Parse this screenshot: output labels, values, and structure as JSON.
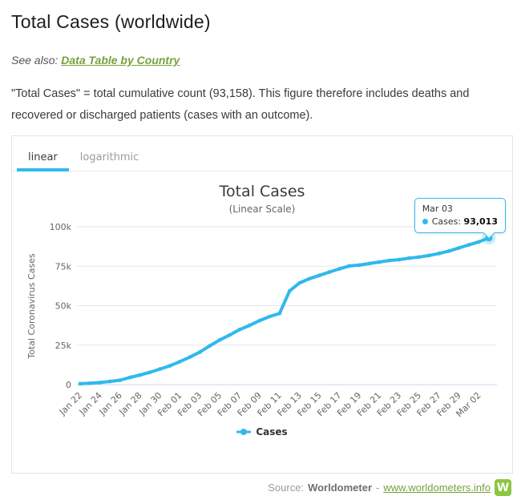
{
  "header": {
    "title": "Total Cases (worldwide)"
  },
  "see_also": {
    "prefix": "See also:",
    "link_label": "Data Table by Country"
  },
  "description": {
    "text": "\"Total Cases\" = total cumulative count (93,158). This figure therefore includes deaths and recovered or discharged patients (cases with an outcome)."
  },
  "tabs": [
    {
      "label": "linear",
      "active": true
    },
    {
      "label": "logarithmic",
      "active": false
    }
  ],
  "tooltip": {
    "date": "Mar 03",
    "series_label": "Cases:",
    "value": "93,013"
  },
  "chart_data": {
    "type": "line",
    "title": "Total Cases",
    "subtitle": "(Linear Scale)",
    "ylabel": "Total Coronavirus Cases",
    "xlabel": "",
    "x": [
      "Jan 22",
      "Jan 23",
      "Jan 24",
      "Jan 25",
      "Jan 26",
      "Jan 27",
      "Jan 28",
      "Jan 29",
      "Jan 30",
      "Jan 31",
      "Feb 01",
      "Feb 02",
      "Feb 03",
      "Feb 04",
      "Feb 05",
      "Feb 06",
      "Feb 07",
      "Feb 08",
      "Feb 09",
      "Feb 10",
      "Feb 11",
      "Feb 12",
      "Feb 13",
      "Feb 14",
      "Feb 15",
      "Feb 16",
      "Feb 17",
      "Feb 18",
      "Feb 19",
      "Feb 20",
      "Feb 21",
      "Feb 22",
      "Feb 23",
      "Feb 24",
      "Feb 25",
      "Feb 26",
      "Feb 27",
      "Feb 28",
      "Feb 29",
      "Mar 01",
      "Mar 02",
      "Mar 03"
    ],
    "x_label_every": 2,
    "series": [
      {
        "name": "Cases",
        "color": "#2FB9EC",
        "values": [
          580,
          845,
          1317,
          2015,
          2800,
          4581,
          6058,
          7813,
          9823,
          11950,
          14553,
          17391,
          20630,
          24545,
          28266,
          31439,
          34876,
          37552,
          40553,
          43099,
          45134,
          59287,
          64438,
          67100,
          69197,
          71329,
          73332,
          75184,
          75700,
          76677,
          77673,
          78651,
          79205,
          80087,
          80828,
          81820,
          83112,
          84615,
          86604,
          88585,
          90443,
          93013
        ]
      }
    ],
    "ylim": [
      0,
      100000
    ],
    "yticks": [
      {
        "v": 0,
        "label": "0"
      },
      {
        "v": 25000,
        "label": "25k"
      },
      {
        "v": 50000,
        "label": "50k"
      },
      {
        "v": 75000,
        "label": "75k"
      },
      {
        "v": 100000,
        "label": "100k"
      }
    ],
    "grid": true,
    "legend_position": "bottom",
    "highlight_last_point": true
  },
  "footer": {
    "source_prefix": "Source:",
    "source_name": "Worldometer",
    "separator": "-",
    "link_label": "www.worldometers.info",
    "logo_letter": "W"
  },
  "colors": {
    "accent": "#2FB9EC",
    "link_green": "#77A13C",
    "logo_green": "#8DC63F",
    "grid": "#E7E7E7",
    "axis_line": "#CCD6EB",
    "label_gray": "#666666"
  }
}
